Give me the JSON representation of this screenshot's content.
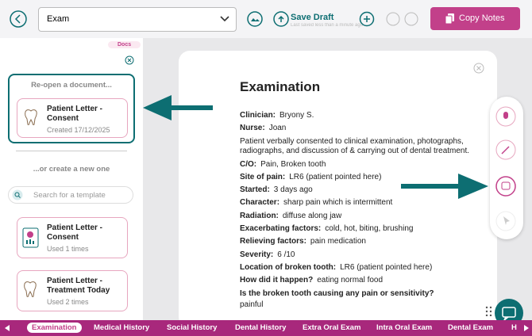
{
  "toolbar": {
    "template": "Exam",
    "save": "Save Draft",
    "saved_note": "Last saved less than a minute ago",
    "copy": "Copy Notes"
  },
  "sidebar": {
    "tab": "Docs",
    "reopen_heading": "Re-open a document...",
    "recent": {
      "title": "Patient Letter - Consent",
      "meta": "Created 17/12/2025"
    },
    "create_heading": "...or create a new one",
    "search_placeholder": "Search for a template",
    "templates": [
      {
        "title": "Patient Letter - Consent",
        "meta": "Used 1 times"
      },
      {
        "title": "Patient Letter - Treatment Today",
        "meta": "Used 2 times"
      }
    ]
  },
  "document": {
    "title": "Examination",
    "items": [
      {
        "label": "Clinician:",
        "value": "Bryony S."
      },
      {
        "label": "Nurse:",
        "value": "Joan"
      },
      {
        "text": "Patient verbally consented to clinical examination, photographs, radiographs, and discussion of & carrying out of dental treatment."
      },
      {
        "label": "C/O:",
        "value": "Pain, Broken tooth"
      },
      {
        "label": "Site of pain:",
        "value": "LR6 (patient pointed here)"
      },
      {
        "label": "Started:",
        "value": "3 days ago"
      },
      {
        "label": "Character:",
        "value": "sharp pain which is intermittent"
      },
      {
        "label": "Radiation:",
        "value": "diffuse along jaw"
      },
      {
        "label": "Exacerbating factors:",
        "value": "cold, hot, biting, brushing"
      },
      {
        "label": "Relieving factors:",
        "value": "pain medication"
      },
      {
        "label": "Severity:",
        "value": "6 /10"
      },
      {
        "label": "Location of broken tooth:",
        "value": "LR6 (patient pointed here)"
      },
      {
        "label": "How did it happen?",
        "value": "eating normal food"
      },
      {
        "label": "Is the broken tooth causing any pain or sensitivity?",
        "value": "painful",
        "block": true
      }
    ]
  },
  "tabs": {
    "active": 0,
    "items": [
      "Examination",
      "Medical History",
      "Social History",
      "Dental History",
      "Extra Oral Exam",
      "Intra Oral Exam",
      "Dental Exam",
      "H"
    ]
  }
}
